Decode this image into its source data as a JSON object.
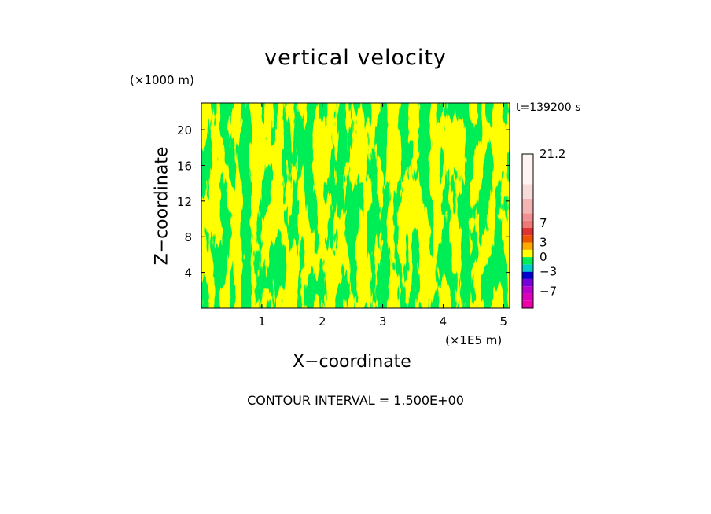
{
  "chart_data": {
    "type": "heatmap",
    "title": "vertical velocity",
    "xlabel": "X−coordinate",
    "ylabel": "Z−coordinate",
    "x_unit": "(×1E5 m)",
    "y_unit": "(×1000 m)",
    "time_label": "t=139200 s",
    "footer": "CONTOUR INTERVAL = 1.500E+00",
    "xlim": [
      0,
      5.1
    ],
    "ylim": [
      0,
      23
    ],
    "x_ticks": [
      "1",
      "2",
      "3",
      "4",
      "5"
    ],
    "y_ticks": [
      "4",
      "8",
      "12",
      "16",
      "20"
    ],
    "colors": {
      "positive_small": "#ffff00",
      "negative_small": "#00ee55",
      "background": "#ffffff"
    },
    "colorbar": {
      "labels": [
        "21.2",
        "7",
        "3",
        "0",
        "−3",
        "−7"
      ],
      "levels": [
        {
          "value": -9,
          "color": "#ee00aa"
        },
        {
          "value": -7.5,
          "color": "#dd00bb"
        },
        {
          "value": -6,
          "color": "#bb00cc"
        },
        {
          "value": -4.5,
          "color": "#7700dd"
        },
        {
          "value": -3,
          "color": "#0000cc"
        },
        {
          "value": -1.5,
          "color": "#00cccc"
        },
        {
          "value": 0,
          "color": "#00ee55"
        },
        {
          "value": 1.5,
          "color": "#ffff00"
        },
        {
          "value": 3,
          "color": "#ffaa00"
        },
        {
          "value": 4.5,
          "color": "#ee5500"
        },
        {
          "value": 6,
          "color": "#dd3333"
        },
        {
          "value": 7.5,
          "color": "#ee7777"
        },
        {
          "value": 9,
          "color": "#f09090"
        },
        {
          "value": 12,
          "color": "#f4b4b4"
        },
        {
          "value": 15,
          "color": "#f8dada"
        },
        {
          "value": 21.2,
          "color": "#fff4f4"
        }
      ]
    }
  }
}
